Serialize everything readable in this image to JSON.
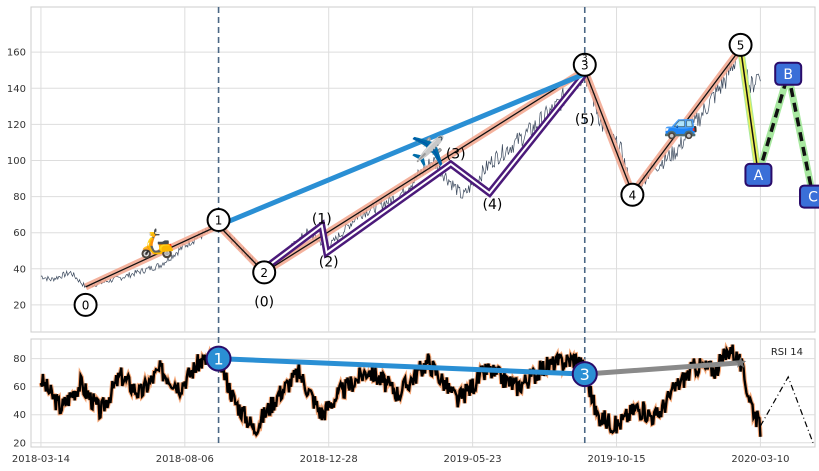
{
  "chart_data": [
    {
      "type": "line",
      "panel": "price",
      "title": "",
      "xlabel": "",
      "ylabel": "",
      "ylim": [
        5,
        185
      ],
      "yticks": [
        20,
        40,
        60,
        80,
        100,
        120,
        140,
        160
      ],
      "grid": true,
      "x_dates": [
        "2018-03-14",
        "2018-08-06",
        "2018-12-28",
        "2019-05-23",
        "2019-10-15",
        "2020-03-10"
      ],
      "xlim_days": [
        -10,
        780
      ],
      "vertical_markers_day": [
        179,
        548
      ],
      "price_anchor_points": [
        {
          "day": 0,
          "value": 36
        },
        {
          "day": 10,
          "value": 34
        },
        {
          "day": 30,
          "value": 38
        },
        {
          "day": 45,
          "value": 30
        },
        {
          "day": 80,
          "value": 35
        },
        {
          "day": 120,
          "value": 42
        },
        {
          "day": 150,
          "value": 55
        },
        {
          "day": 179,
          "value": 64
        },
        {
          "day": 195,
          "value": 55
        },
        {
          "day": 225,
          "value": 38
        },
        {
          "day": 240,
          "value": 45
        },
        {
          "day": 268,
          "value": 60
        },
        {
          "day": 290,
          "value": 52
        },
        {
          "day": 320,
          "value": 70
        },
        {
          "day": 360,
          "value": 80
        },
        {
          "day": 395,
          "value": 100
        },
        {
          "day": 425,
          "value": 80
        },
        {
          "day": 455,
          "value": 100
        },
        {
          "day": 490,
          "value": 115
        },
        {
          "day": 520,
          "value": 130
        },
        {
          "day": 548,
          "value": 150
        },
        {
          "day": 565,
          "value": 120
        },
        {
          "day": 585,
          "value": 105
        },
        {
          "day": 596,
          "value": 82
        },
        {
          "day": 615,
          "value": 95
        },
        {
          "day": 640,
          "value": 105
        },
        {
          "day": 665,
          "value": 125
        },
        {
          "day": 690,
          "value": 145
        },
        {
          "day": 705,
          "value": 162
        },
        {
          "day": 715,
          "value": 140
        },
        {
          "day": 725,
          "value": 150
        }
      ],
      "salmon_path": [
        {
          "day": 45,
          "value": 30
        },
        {
          "day": 179,
          "value": 64
        },
        {
          "day": 225,
          "value": 38
        },
        {
          "day": 548,
          "value": 150
        },
        {
          "day": 596,
          "value": 82
        },
        {
          "day": 705,
          "value": 162
        }
      ],
      "black_path": [
        {
          "day": 45,
          "value": 30
        },
        {
          "day": 179,
          "value": 64
        },
        {
          "day": 225,
          "value": 38
        },
        {
          "day": 548,
          "value": 150
        },
        {
          "day": 596,
          "value": 82
        },
        {
          "day": 705,
          "value": 162
        }
      ],
      "purple_path": [
        {
          "day": 225,
          "value": 40
        },
        {
          "day": 283,
          "value": 64
        },
        {
          "day": 288,
          "value": 49
        },
        {
          "day": 413,
          "value": 98
        },
        {
          "day": 452,
          "value": 82
        },
        {
          "day": 548,
          "value": 148
        }
      ],
      "blue_line": [
        {
          "day": 179,
          "value": 64
        },
        {
          "day": 548,
          "value": 148
        }
      ],
      "correction_yellow": [
        {
          "day": 705,
          "value": 162
        },
        {
          "day": 723,
          "value": 92
        }
      ],
      "correction_green": [
        {
          "day": 705,
          "value": 162
        },
        {
          "day": 723,
          "value": 92
        },
        {
          "day": 753,
          "value": 148
        },
        {
          "day": 778,
          "value": 80
        }
      ],
      "correction_dashed": [
        {
          "day": 723,
          "value": 92
        },
        {
          "day": 753,
          "value": 148
        },
        {
          "day": 778,
          "value": 80
        }
      ],
      "wave_circles": [
        {
          "label": "0",
          "day": 45,
          "value": 20
        },
        {
          "label": "1",
          "day": 179,
          "value": 67
        },
        {
          "label": "2",
          "day": 225,
          "value": 38
        },
        {
          "label": "3",
          "day": 548,
          "value": 153
        },
        {
          "label": "4",
          "day": 596,
          "value": 81
        },
        {
          "label": "5",
          "day": 705,
          "value": 164
        }
      ],
      "wave_subcircle_label": "3",
      "sub_wave_labels": [
        {
          "label": "(0)",
          "day": 225,
          "value": 22
        },
        {
          "label": "(1)",
          "day": 283,
          "value": 68
        },
        {
          "label": "(2)",
          "day": 290,
          "value": 44
        },
        {
          "label": "(3)",
          "day": 418,
          "value": 104
        },
        {
          "label": "(4)",
          "day": 455,
          "value": 76
        },
        {
          "label": "(5)",
          "day": 548,
          "value": 123
        }
      ],
      "abc_boxes": [
        {
          "label": "A",
          "day": 723,
          "value": 92
        },
        {
          "label": "B",
          "day": 753,
          "value": 148
        },
        {
          "label": "C",
          "day": 778,
          "value": 80
        }
      ],
      "emoji_markers": [
        {
          "emoji": "🛵",
          "day": 117,
          "value": 55
        },
        {
          "emoji": "✈️",
          "day": 390,
          "value": 106
        },
        {
          "emoji": "🚙",
          "day": 645,
          "value": 121
        }
      ]
    },
    {
      "type": "line",
      "panel": "rsi",
      "title": "",
      "legend": "RSI 14",
      "ylim": [
        17,
        94
      ],
      "yticks": [
        20,
        40,
        60,
        80
      ],
      "grid": true,
      "rsi_anchor_points": [
        {
          "day": 0,
          "value": 65
        },
        {
          "day": 20,
          "value": 45
        },
        {
          "day": 40,
          "value": 62
        },
        {
          "day": 60,
          "value": 42
        },
        {
          "day": 80,
          "value": 68
        },
        {
          "day": 100,
          "value": 55
        },
        {
          "day": 120,
          "value": 72
        },
        {
          "day": 140,
          "value": 60
        },
        {
          "day": 160,
          "value": 78
        },
        {
          "day": 179,
          "value": 80
        },
        {
          "day": 195,
          "value": 50
        },
        {
          "day": 215,
          "value": 30
        },
        {
          "day": 240,
          "value": 55
        },
        {
          "day": 260,
          "value": 70
        },
        {
          "day": 283,
          "value": 40
        },
        {
          "day": 300,
          "value": 55
        },
        {
          "day": 330,
          "value": 72
        },
        {
          "day": 360,
          "value": 55
        },
        {
          "day": 390,
          "value": 78
        },
        {
          "day": 420,
          "value": 50
        },
        {
          "day": 450,
          "value": 72
        },
        {
          "day": 480,
          "value": 60
        },
        {
          "day": 510,
          "value": 75
        },
        {
          "day": 540,
          "value": 80
        },
        {
          "day": 548,
          "value": 72
        },
        {
          "day": 560,
          "value": 40
        },
        {
          "day": 580,
          "value": 32
        },
        {
          "day": 600,
          "value": 45
        },
        {
          "day": 620,
          "value": 38
        },
        {
          "day": 640,
          "value": 60
        },
        {
          "day": 660,
          "value": 75
        },
        {
          "day": 680,
          "value": 72
        },
        {
          "day": 695,
          "value": 88
        },
        {
          "day": 705,
          "value": 76
        },
        {
          "day": 715,
          "value": 50
        },
        {
          "day": 725,
          "value": 30
        }
      ],
      "rsi_projection": [
        {
          "day": 725,
          "value": 32
        },
        {
          "day": 753,
          "value": 67
        },
        {
          "day": 778,
          "value": 20
        }
      ],
      "blue_line": [
        {
          "day": 179,
          "value": 80
        },
        {
          "day": 548,
          "value": 69
        }
      ],
      "gray_line": [
        {
          "day": 548,
          "value": 69
        },
        {
          "day": 705,
          "value": 77
        }
      ],
      "star_point": {
        "day": 705,
        "value": 77
      },
      "circles": [
        {
          "label": "1",
          "day": 179,
          "value": 80
        },
        {
          "label": "3",
          "day": 548,
          "value": 69
        }
      ]
    }
  ]
}
